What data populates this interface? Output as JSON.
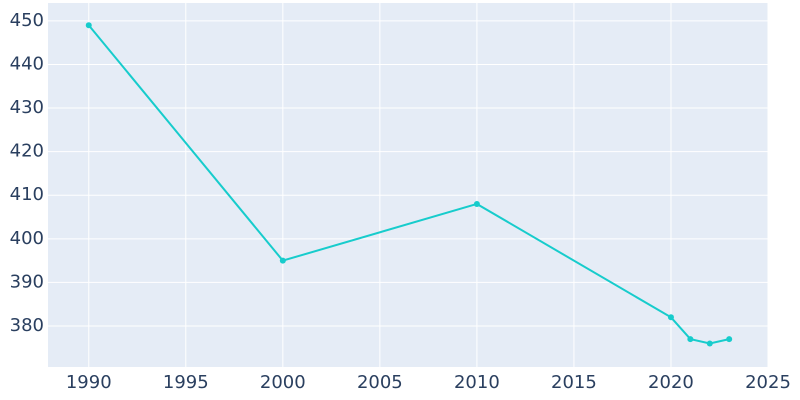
{
  "chart_data": {
    "type": "line",
    "x": [
      1990,
      2000,
      2010,
      2020,
      2021,
      2022,
      2023
    ],
    "series": [
      {
        "color": "#17cccc",
        "values": [
          449,
          395,
          408,
          382,
          377,
          376,
          377
        ]
      }
    ],
    "xlim": [
      1987.9,
      2025
    ],
    "xticks": [
      1990,
      1995,
      2000,
      2005,
      2010,
      2015,
      2020,
      2025
    ],
    "ylim": [
      370.6,
      454.1
    ],
    "yticks": [
      380,
      390,
      400,
      410,
      420,
      430,
      440,
      450
    ],
    "grid": true
  }
}
